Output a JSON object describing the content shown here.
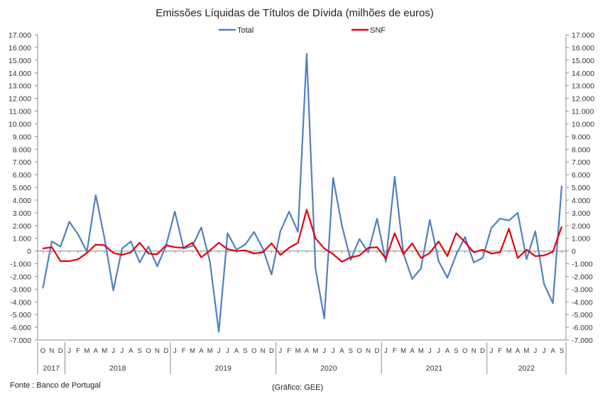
{
  "chart_data": {
    "type": "line",
    "title": "Emissões Líquidas de Títulos de Dívida (milhões de euros)",
    "ylim": [
      -7000,
      17000
    ],
    "ytick_step": 1000,
    "ytick_labels": [
      "-7.000",
      "-6.000",
      "-5.000",
      "-4.000",
      "-3.000",
      "-2.000",
      "-1.000",
      "0",
      "1.000",
      "2.000",
      "3.000",
      "4.000",
      "5.000",
      "6.000",
      "7.000",
      "8.000",
      "9.000",
      "10.000",
      "11.000",
      "12.000",
      "13.000",
      "14.000",
      "15.000",
      "16.000",
      "17.000"
    ],
    "months": [
      "O",
      "N",
      "D",
      "J",
      "F",
      "M",
      "A",
      "M",
      "J",
      "J",
      "A",
      "S",
      "O",
      "N",
      "D",
      "J",
      "F",
      "M",
      "A",
      "M",
      "J",
      "J",
      "A",
      "S",
      "O",
      "N",
      "D",
      "J",
      "F",
      "M",
      "A",
      "M",
      "J",
      "J",
      "A",
      "S",
      "O",
      "N",
      "D",
      "J",
      "F",
      "M",
      "A",
      "M",
      "J",
      "J",
      "A",
      "S",
      "O",
      "N",
      "D",
      "J",
      "F",
      "M",
      "A",
      "M",
      "J",
      "J",
      "A",
      "S"
    ],
    "years": [
      {
        "label": "2017",
        "start": 0,
        "count": 3
      },
      {
        "label": "2018",
        "start": 3,
        "count": 12
      },
      {
        "label": "2019",
        "start": 15,
        "count": 12
      },
      {
        "label": "2020",
        "start": 27,
        "count": 12
      },
      {
        "label": "2021",
        "start": 39,
        "count": 12
      },
      {
        "label": "2022",
        "start": 51,
        "count": 9
      }
    ],
    "legend_position": "top-center",
    "grid": false,
    "series": [
      {
        "name": "Total",
        "color": "#4f81bd",
        "values": [
          -2900,
          750,
          350,
          2300,
          1300,
          -50,
          4400,
          1000,
          -3100,
          200,
          750,
          -900,
          350,
          -1200,
          400,
          3100,
          200,
          400,
          1850,
          -850,
          -6350,
          1400,
          100,
          500,
          1500,
          200,
          -1850,
          1550,
          3100,
          1500,
          15500,
          -1400,
          -5300,
          5750,
          2000,
          -700,
          950,
          -100,
          2550,
          -850,
          5850,
          -200,
          -2200,
          -1350,
          2450,
          -800,
          -2100,
          -300,
          1100,
          -900,
          -550,
          1800,
          2550,
          2400,
          3000,
          -650,
          1550,
          -2600,
          -4100,
          5100
        ]
      },
      {
        "name": "SNF",
        "color": "#e3000f",
        "values": [
          200,
          300,
          -800,
          -800,
          -650,
          -150,
          500,
          450,
          -150,
          -300,
          -100,
          650,
          -200,
          -250,
          450,
          300,
          250,
          650,
          -500,
          50,
          650,
          150,
          0,
          50,
          -200,
          -100,
          600,
          -300,
          250,
          650,
          3250,
          1000,
          200,
          -250,
          -850,
          -500,
          -350,
          250,
          300,
          -600,
          1400,
          -250,
          600,
          -550,
          -150,
          750,
          -400,
          1400,
          700,
          -100,
          100,
          -200,
          -100,
          1750,
          -550,
          100,
          -400,
          -350,
          -50,
          1900
        ]
      }
    ]
  },
  "footer": {
    "source": "Fonte : Banco de Portugal",
    "credit": "(Gráfico: GEE)"
  }
}
